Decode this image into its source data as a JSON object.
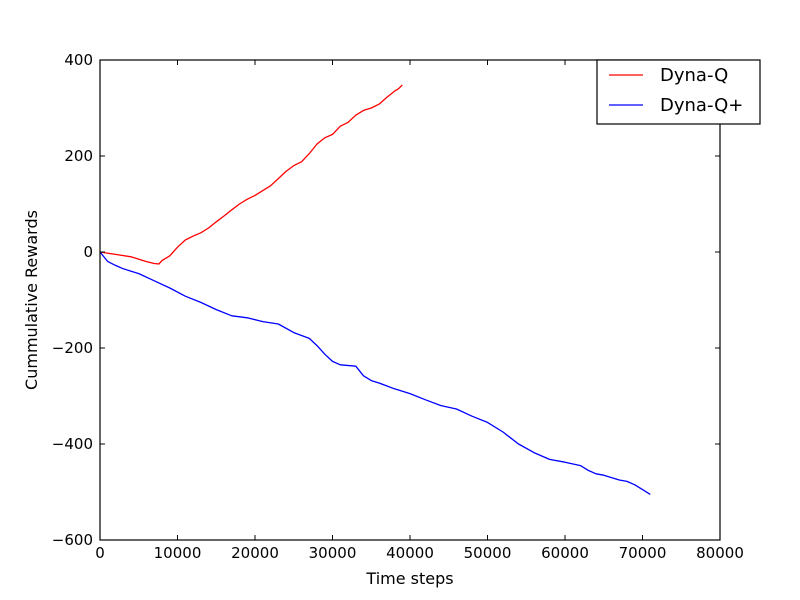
{
  "chart_data": {
    "type": "line",
    "title": "",
    "xlabel": "Time steps",
    "ylabel": "Cummulative Rewards",
    "xlim": [
      0,
      80000
    ],
    "ylim": [
      -600,
      400
    ],
    "xticks": [
      0,
      10000,
      20000,
      30000,
      40000,
      50000,
      60000,
      70000,
      80000
    ],
    "yticks": [
      -600,
      -400,
      -200,
      0,
      200,
      400
    ],
    "grid": false,
    "legend_position": "top-right",
    "series": [
      {
        "name": "Dyna-Q",
        "color": "#ff0000",
        "x": [
          0,
          2000,
          4000,
          6000,
          7000,
          7600,
          8000,
          9000,
          10000,
          11000,
          12000,
          13000,
          14000,
          15000,
          16000,
          17000,
          18000,
          19000,
          20000,
          21000,
          22000,
          23000,
          24000,
          25000,
          26000,
          27000,
          28000,
          29000,
          30000,
          31000,
          32000,
          33000,
          34000,
          35000,
          36000,
          37000,
          38000,
          38500,
          39000
        ],
        "y": [
          0,
          -5,
          -10,
          -20,
          -24,
          -25,
          -18,
          -8,
          10,
          25,
          33,
          40,
          50,
          63,
          75,
          88,
          100,
          110,
          118,
          128,
          138,
          153,
          168,
          180,
          188,
          205,
          225,
          238,
          245,
          262,
          270,
          285,
          295,
          300,
          308,
          322,
          335,
          340,
          348
        ]
      },
      {
        "name": "Dyna-Q+",
        "color": "#0000ff",
        "x": [
          0,
          1000,
          2000,
          3000,
          5000,
          7000,
          9000,
          11000,
          13000,
          15000,
          17000,
          19000,
          21000,
          23000,
          25000,
          27000,
          28000,
          29000,
          30000,
          31000,
          33000,
          34000,
          35000,
          36000,
          38000,
          40000,
          42000,
          44000,
          46000,
          48000,
          50000,
          52000,
          54000,
          56000,
          58000,
          60000,
          62000,
          63000,
          64000,
          65000,
          66000,
          67000,
          68000,
          69000,
          70000,
          71000
        ],
        "y": [
          0,
          -20,
          -28,
          -35,
          -45,
          -60,
          -75,
          -92,
          -105,
          -120,
          -133,
          -137,
          -145,
          -150,
          -168,
          -180,
          -195,
          -213,
          -228,
          -235,
          -238,
          -258,
          -268,
          -273,
          -285,
          -295,
          -308,
          -320,
          -327,
          -342,
          -355,
          -375,
          -400,
          -418,
          -432,
          -438,
          -445,
          -455,
          -462,
          -465,
          -470,
          -475,
          -478,
          -485,
          -495,
          -505
        ]
      }
    ]
  }
}
